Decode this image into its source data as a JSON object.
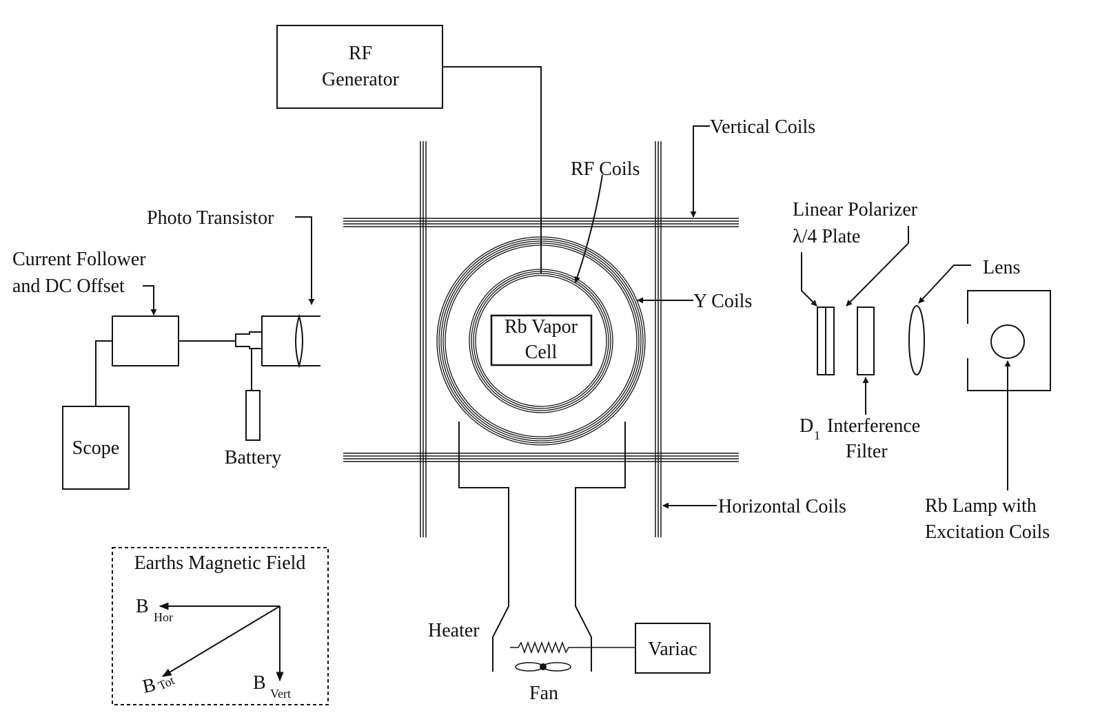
{
  "labels": {
    "rf_generator_1": "RF",
    "rf_generator_2": "Generator",
    "vertical_coils": "Vertical Coils",
    "rf_coils": "RF Coils",
    "photo_transistor": "Photo Transistor",
    "current_follower_1": "Current Follower",
    "current_follower_2": "and DC Offset",
    "rb_vapor_cell_1": "Rb Vapor",
    "rb_vapor_cell_2": "Cell",
    "y_coils": "Y Coils",
    "linear_polarizer": "Linear Polarizer",
    "quarter_wave_plate": "λ/4 Plate",
    "lens": "Lens",
    "scope": "Scope",
    "battery": "Battery",
    "d1_letter": "D",
    "d1_sub": "1",
    "interference_filter_1": "Interference",
    "interference_filter_2": "Filter",
    "horizontal_coils": "Horizontal Coils",
    "rb_lamp_1": "Rb Lamp with",
    "rb_lamp_2": "Excitation Coils",
    "earth_field_title": "Earths Magnetic Field",
    "b_hor": "B",
    "b_hor_sub": "Hor",
    "b_tot": "B",
    "b_tot_sub": "Tot",
    "b_vert": "B",
    "b_vert_sub": "Vert",
    "heater": "Heater",
    "variac": "Variac",
    "fan": "Fan"
  },
  "colors": {
    "ink": "#111111",
    "background": "#ffffff"
  }
}
